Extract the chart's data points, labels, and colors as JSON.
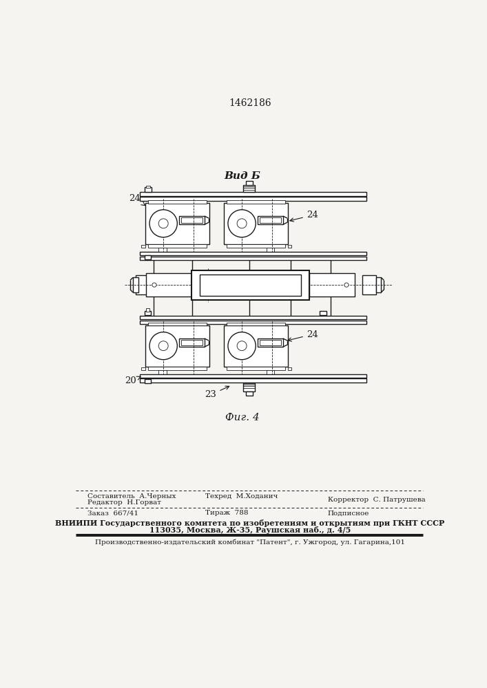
{
  "patent_number": "1462186",
  "view_label": "Вид Б",
  "fig_label": "Фиг. 4",
  "bg_color": "#f5f4f0",
  "line_color": "#1a1a1a",
  "footer": {
    "col1_line1": "Редактор  Н.Горват",
    "col2_line1": "Составитель  А.Черных",
    "col2_line2": "Техред  М.Ходанич",
    "col3_line1": "Корректор  С. Патрушева",
    "row2_col1": "Заказ  667/41",
    "row2_col2": "Тираж  788",
    "row2_col3": "Подписное",
    "vnipi_line1": "ВНИИПИ Государственного комитета по изобретениям и открытиям при ГКНТ СССР",
    "vnipi_line2": "113035, Москва, Ж-35, Раушская наб., д. 4/5",
    "patent_line": "Производственно-издательский комбинат \"Патент\", г. Ужгород, ул. Гагарина,101"
  }
}
